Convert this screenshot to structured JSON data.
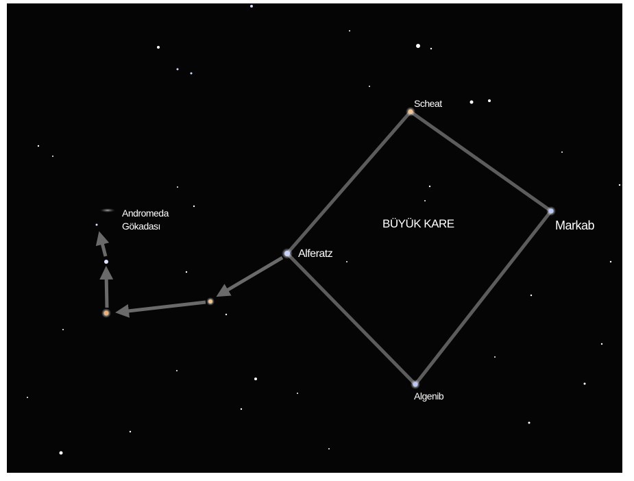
{
  "labels": {
    "scheat": "Scheat",
    "markab": "Markab",
    "alferatz": "Alferatz",
    "algenib": "Algenib",
    "square": "BÜYÜK KARE",
    "galaxy": [
      "Andromeda",
      "Gökadası"
    ]
  }
}
